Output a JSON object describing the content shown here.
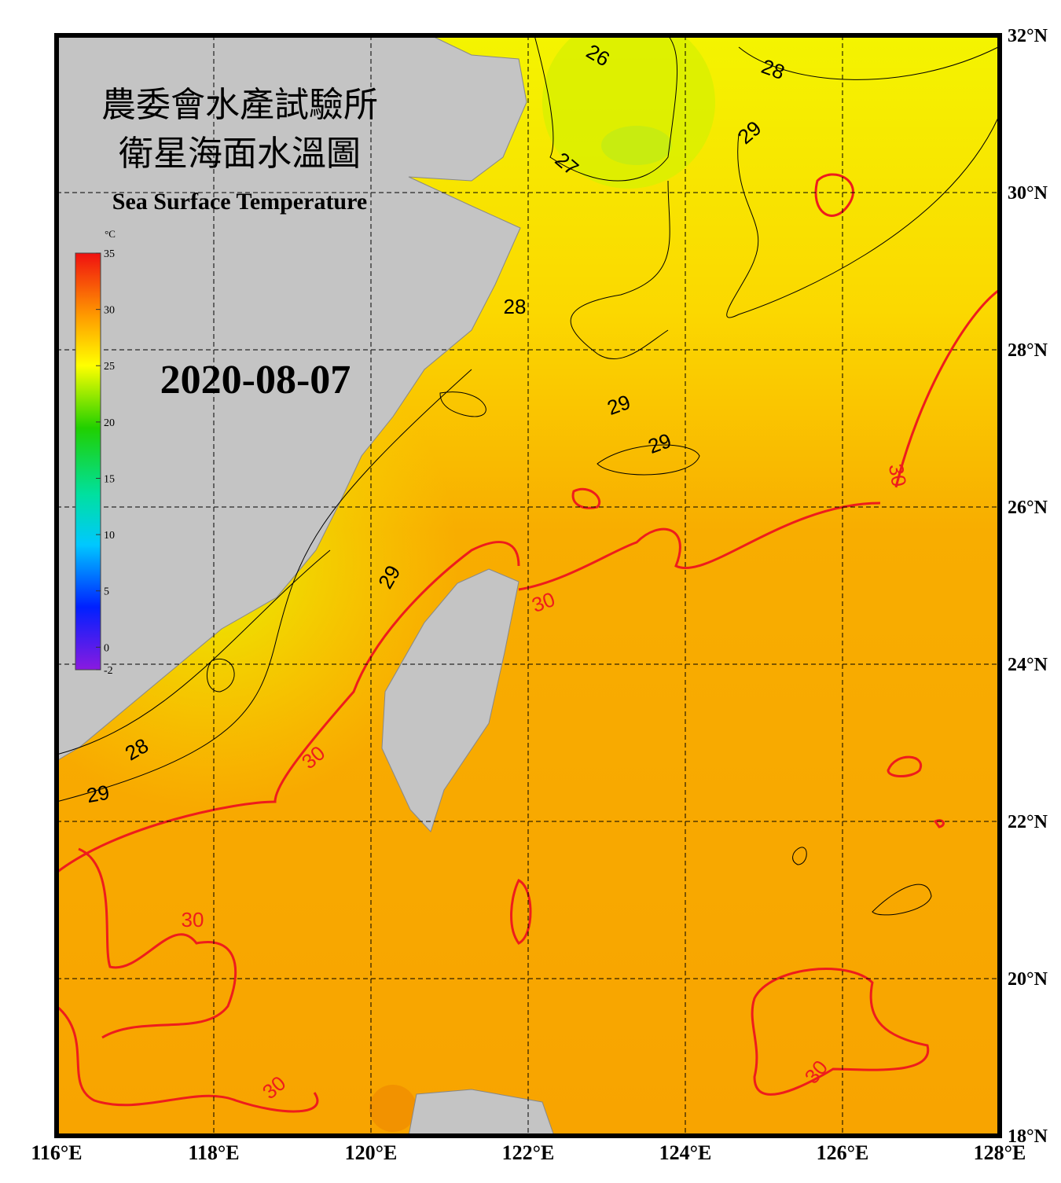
{
  "map": {
    "title_zh_1": "農委會水產試驗所",
    "title_zh_2": "衛星海面水溫圖",
    "title_en": "Sea Surface Temperature",
    "date": "2020-08-07",
    "xlim": [
      116,
      128
    ],
    "ylim": [
      18,
      32
    ],
    "xticks": [
      {
        "value": 116,
        "label": "116°E"
      },
      {
        "value": 118,
        "label": "118°E"
      },
      {
        "value": 120,
        "label": "120°E"
      },
      {
        "value": 122,
        "label": "122°E"
      },
      {
        "value": 124,
        "label": "124°E"
      },
      {
        "value": 126,
        "label": "126°E"
      },
      {
        "value": 128,
        "label": "128°E"
      }
    ],
    "yticks": [
      {
        "value": 18,
        "label": "18°N"
      },
      {
        "value": 20,
        "label": "20°N"
      },
      {
        "value": 22,
        "label": "22°N"
      },
      {
        "value": 24,
        "label": "24°N"
      },
      {
        "value": 26,
        "label": "26°N"
      },
      {
        "value": 28,
        "label": "28°N"
      },
      {
        "value": 30,
        "label": "30°N"
      },
      {
        "value": 32,
        "label": "32°N"
      }
    ],
    "colorbar": {
      "unit": "°C",
      "lim": [
        -2,
        35
      ],
      "ticks": [
        -2,
        0,
        5,
        10,
        15,
        20,
        25,
        30,
        35
      ]
    },
    "contour_labels": [
      "26",
      "28",
      "29",
      "27",
      "28",
      "29",
      "29",
      "30",
      "29",
      "30",
      "30",
      "28",
      "29",
      "30",
      "30",
      "30"
    ]
  }
}
